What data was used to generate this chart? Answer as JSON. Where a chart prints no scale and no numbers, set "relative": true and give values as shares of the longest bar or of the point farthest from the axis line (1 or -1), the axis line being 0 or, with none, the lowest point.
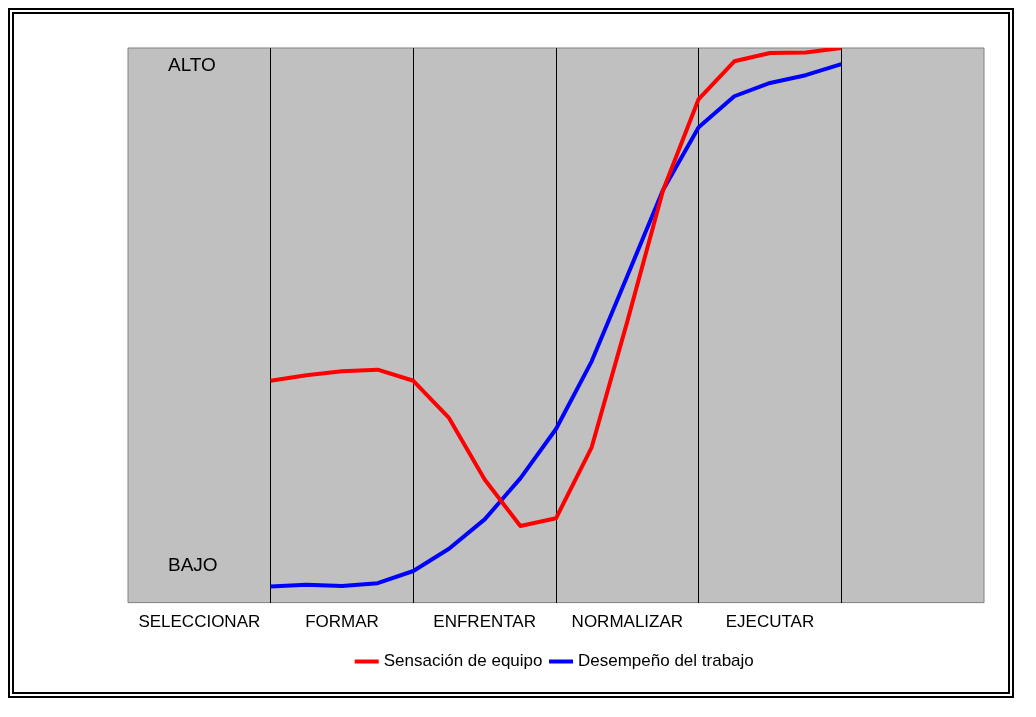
{
  "chart_data": {
    "type": "line",
    "relative": true,
    "categories": [
      null,
      null,
      "SELECCIONAR",
      null,
      null,
      null,
      "FORMAR",
      null,
      null,
      null,
      "ENFRENTAR",
      null,
      null,
      null,
      "NORMALIZAR",
      null,
      null,
      null,
      "EJECUTAR",
      null,
      null,
      null,
      null,
      null,
      null
    ],
    "series": [
      {
        "name": "Sensación de equipo",
        "color": "#ff0000",
        "values": [
          null,
          null,
          null,
          null,
          0.4,
          0.41,
          0.417,
          0.42,
          0.4,
          0.333,
          0.222,
          0.138,
          0.152,
          0.28,
          0.507,
          0.743,
          0.908,
          0.976,
          0.991,
          0.992,
          1,
          null,
          null,
          null,
          null
        ]
      },
      {
        "name": "Desempeño del trabajo",
        "color": "#0000ff",
        "values": [
          null,
          null,
          null,
          null,
          0.029,
          0.032,
          0.03,
          0.035,
          0.057,
          0.097,
          0.15,
          0.224,
          0.313,
          0.435,
          0.589,
          0.744,
          0.857,
          0.913,
          0.937,
          0.951,
          0.971,
          null,
          null,
          null,
          null
        ]
      }
    ],
    "annotations": [
      "ALTO",
      "BAJO"
    ],
    "grid": "x",
    "legend": "bottom",
    "marker": "none",
    "line_style": "solid"
  }
}
